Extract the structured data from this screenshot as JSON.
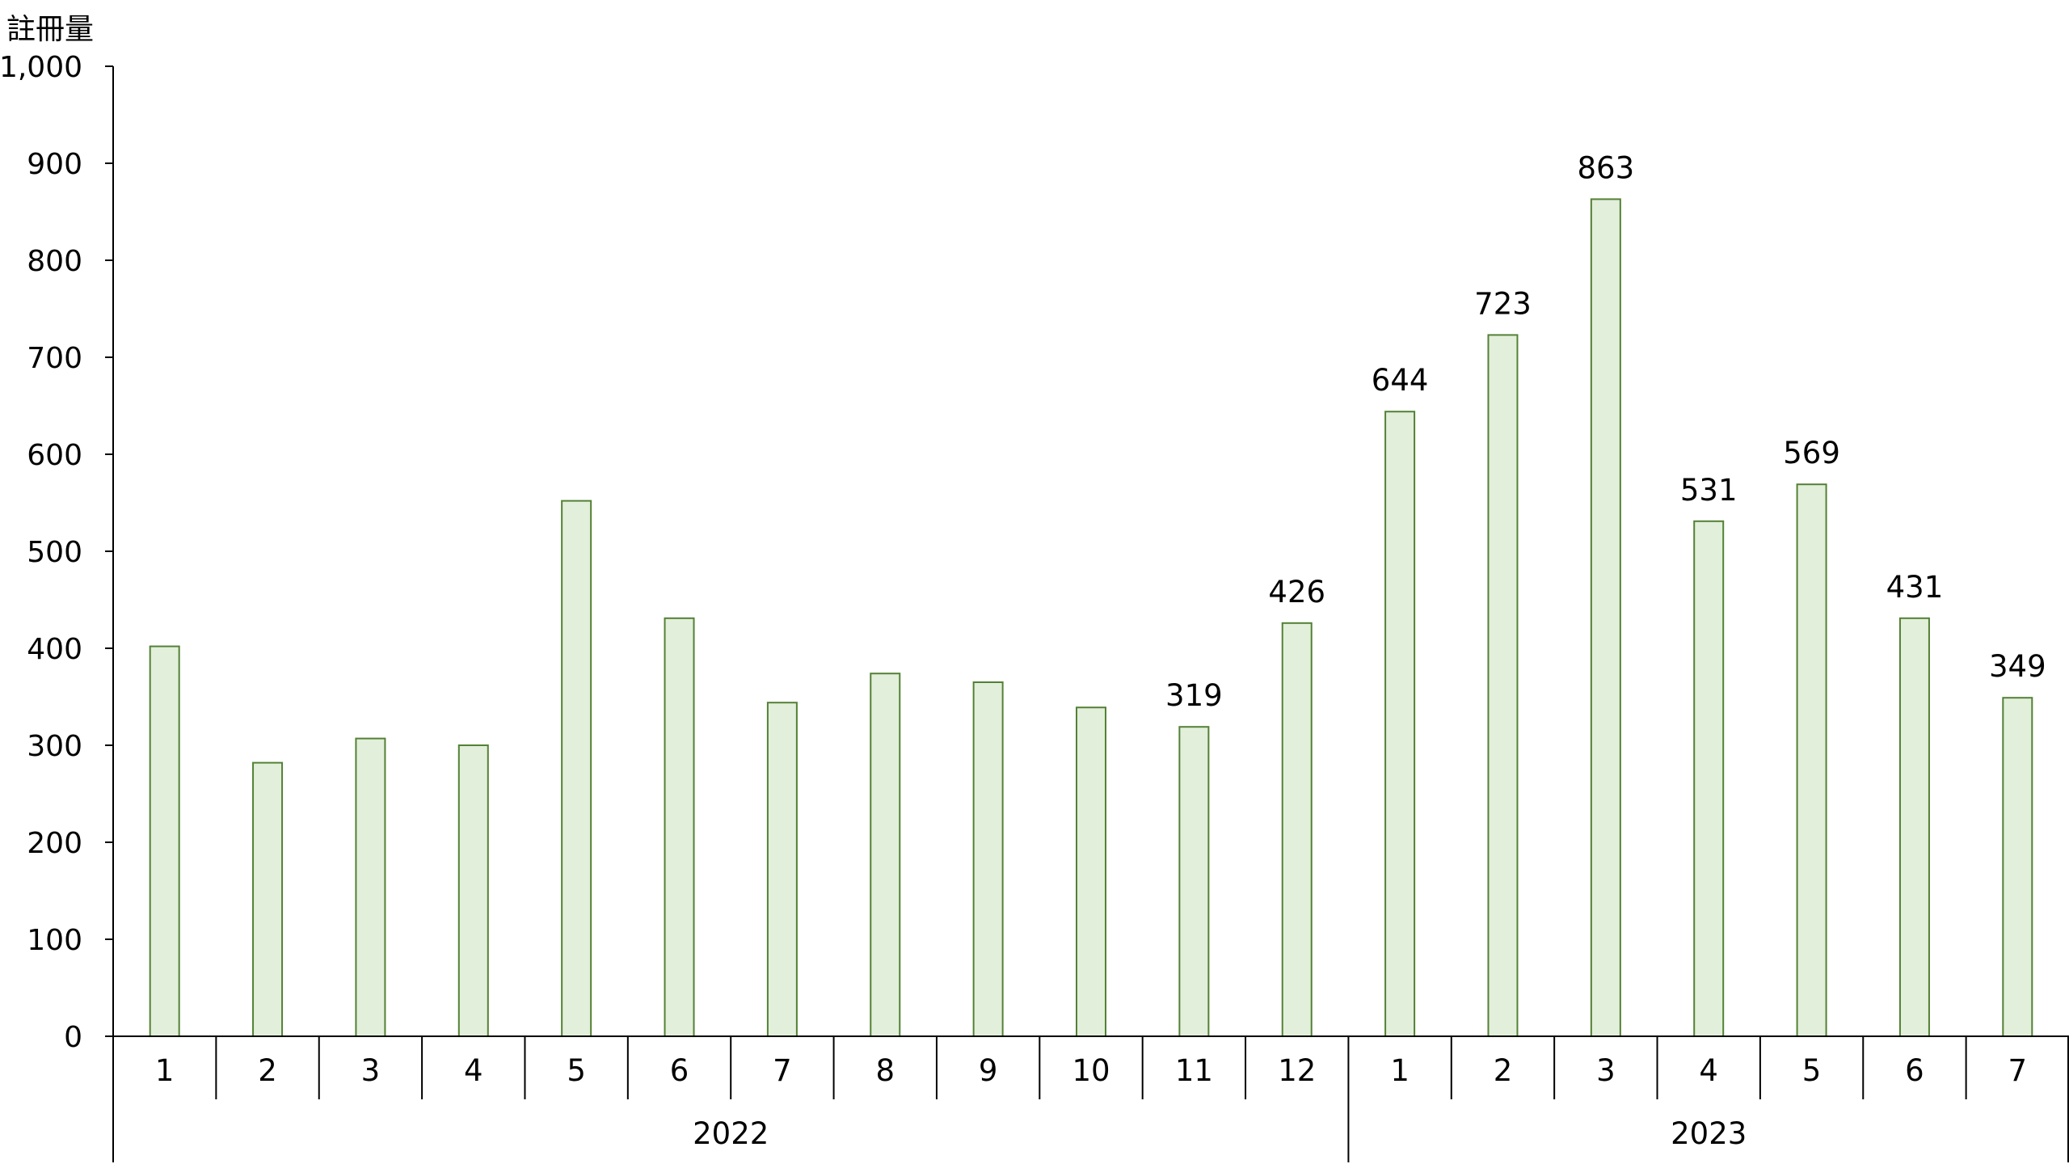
{
  "chart_data": {
    "type": "bar",
    "title": "",
    "ylabel": "註冊量",
    "xlabel": "",
    "ylim": [
      0,
      1000
    ],
    "yticks": [
      0,
      100,
      200,
      300,
      400,
      500,
      600,
      700,
      800,
      900,
      1000
    ],
    "ytick_labels": [
      "0",
      "100",
      "200",
      "300",
      "400",
      "500",
      "600",
      "700",
      "800",
      "900",
      "1,000"
    ],
    "groups": [
      {
        "label": "2022",
        "count": 12
      },
      {
        "label": "2023",
        "count": 7
      }
    ],
    "categories": [
      "1",
      "2",
      "3",
      "4",
      "5",
      "6",
      "7",
      "8",
      "9",
      "10",
      "11",
      "12",
      "1",
      "2",
      "3",
      "4",
      "5",
      "6",
      "7"
    ],
    "series": [
      {
        "values": [
          402,
          282,
          307,
          300,
          552,
          431,
          344,
          374,
          365,
          339,
          319,
          426,
          644,
          723,
          863,
          531,
          569,
          431,
          349
        ]
      }
    ],
    "data_labels": [
      "",
      "",
      "",
      "",
      "",
      "",
      "",
      "",
      "",
      "",
      "319",
      "426",
      "644",
      "723",
      "863",
      "531",
      "569",
      "431",
      "349"
    ],
    "colors": {
      "bar_fill": "#e2efda",
      "bar_stroke": "#538135",
      "axis": "#000000"
    },
    "grid": false,
    "legend": "none"
  }
}
